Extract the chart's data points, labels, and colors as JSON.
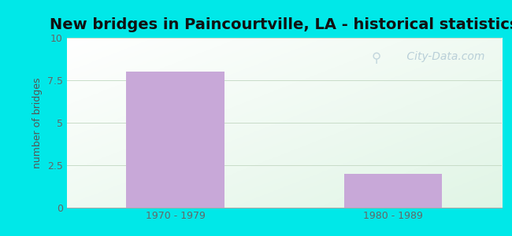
{
  "title": "New bridges in Paincourtville, LA - historical statistics",
  "categories": [
    "1970 - 1979",
    "1980 - 1989"
  ],
  "values": [
    8,
    2
  ],
  "bar_color": "#c8a8d8",
  "ylabel": "number of bridges",
  "ylim": [
    0,
    10
  ],
  "yticks": [
    0,
    2.5,
    5,
    7.5,
    10
  ],
  "title_fontsize": 14,
  "ylabel_color": "#555555",
  "tick_color": "#666666",
  "outer_bg": "#00e8e8",
  "watermark": " City-Data.com",
  "bar_width": 0.45,
  "figsize": [
    6.5,
    3.0
  ]
}
